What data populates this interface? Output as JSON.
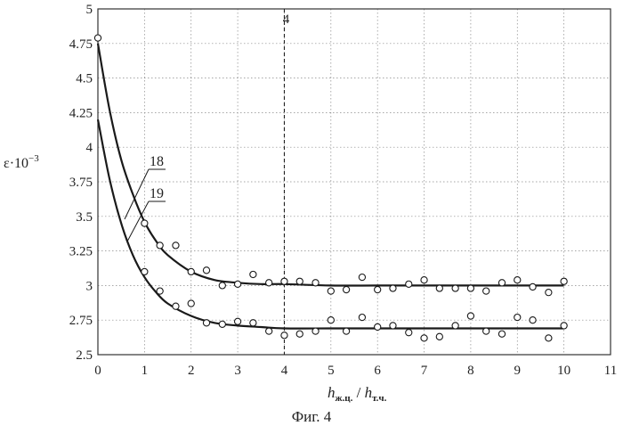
{
  "caption": "Фиг. 4",
  "chart_data": {
    "type": "scatter",
    "title": "",
    "xlabel": "h_ж.ц. / h_т.ч.",
    "xlabel_parts": {
      "h1": "h",
      "sub1": "ж.ц.",
      "sep": " / ",
      "h2": "h",
      "sub2": "т.ч."
    },
    "ylabel": "ε·10⁻³",
    "ylabel_parts": {
      "base": "ε·10",
      "exp": "−3"
    },
    "xlim": [
      0,
      11
    ],
    "ylim": [
      2.5,
      5
    ],
    "x_ticks": [
      0,
      1,
      2,
      3,
      4,
      5,
      6,
      7,
      8,
      9,
      10,
      11
    ],
    "y_ticks": [
      2.5,
      2.75,
      3,
      3.25,
      3.5,
      3.75,
      4,
      4.25,
      4.5,
      4.75,
      5
    ],
    "y_tick_labels": [
      "2.5",
      "2.75",
      "3",
      "3.25",
      "3.5",
      "3.75",
      "4",
      "4.25",
      "4.5",
      "4.75",
      "5"
    ],
    "grid": true,
    "vertical_line": {
      "x": 4,
      "label": "4"
    },
    "series": [
      {
        "name": "18",
        "curve": {
          "x": [
            0,
            0.25,
            0.5,
            0.75,
            1,
            1.25,
            1.5,
            2,
            2.5,
            3,
            3.5,
            4,
            5,
            6,
            7,
            8,
            9,
            10
          ],
          "y": [
            4.75,
            4.27,
            3.91,
            3.66,
            3.46,
            3.32,
            3.22,
            3.1,
            3.04,
            3.02,
            3.01,
            3.01,
            3.0,
            3.0,
            3.0,
            3.0,
            3.0,
            3.0
          ]
        },
        "points": {
          "x": [
            0,
            1,
            1.33,
            1.67,
            2,
            2.33,
            2.67,
            3,
            3.33,
            3.67,
            4,
            4.33,
            4.67,
            5,
            5.33,
            5.67,
            6,
            6.33,
            6.67,
            7,
            7.33,
            7.67,
            8,
            8.33,
            8.67,
            9,
            9.33,
            9.67,
            10
          ],
          "y": [
            4.79,
            3.45,
            3.29,
            3.29,
            3.1,
            3.11,
            3.0,
            3.01,
            3.08,
            3.02,
            3.03,
            3.03,
            3.02,
            2.96,
            2.97,
            3.06,
            2.97,
            2.98,
            3.01,
            3.04,
            2.98,
            2.98,
            2.98,
            2.96,
            3.02,
            3.04,
            2.99,
            2.95,
            3.03
          ]
        }
      },
      {
        "name": "19",
        "curve": {
          "x": [
            0,
            0.25,
            0.5,
            0.75,
            1,
            1.25,
            1.5,
            2,
            2.5,
            3,
            3.5,
            4,
            5,
            6,
            7,
            8,
            9,
            10
          ],
          "y": [
            4.2,
            3.77,
            3.45,
            3.22,
            3.06,
            2.95,
            2.87,
            2.78,
            2.73,
            2.71,
            2.7,
            2.69,
            2.69,
            2.69,
            2.69,
            2.69,
            2.69,
            2.69
          ]
        },
        "points": {
          "x": [
            1,
            1.33,
            1.67,
            2,
            2.33,
            2.67,
            3,
            3.33,
            3.67,
            4,
            4.33,
            4.67,
            5,
            5.33,
            5.67,
            6,
            6.33,
            6.67,
            7,
            7.33,
            7.67,
            8,
            8.33,
            8.67,
            9,
            9.33,
            9.67,
            10
          ],
          "y": [
            3.1,
            2.96,
            2.85,
            2.87,
            2.73,
            2.72,
            2.74,
            2.73,
            2.67,
            2.64,
            2.65,
            2.67,
            2.75,
            2.67,
            2.77,
            2.7,
            2.71,
            2.66,
            2.62,
            2.63,
            2.71,
            2.78,
            2.67,
            2.65,
            2.77,
            2.75,
            2.62,
            2.71
          ]
        }
      }
    ]
  }
}
